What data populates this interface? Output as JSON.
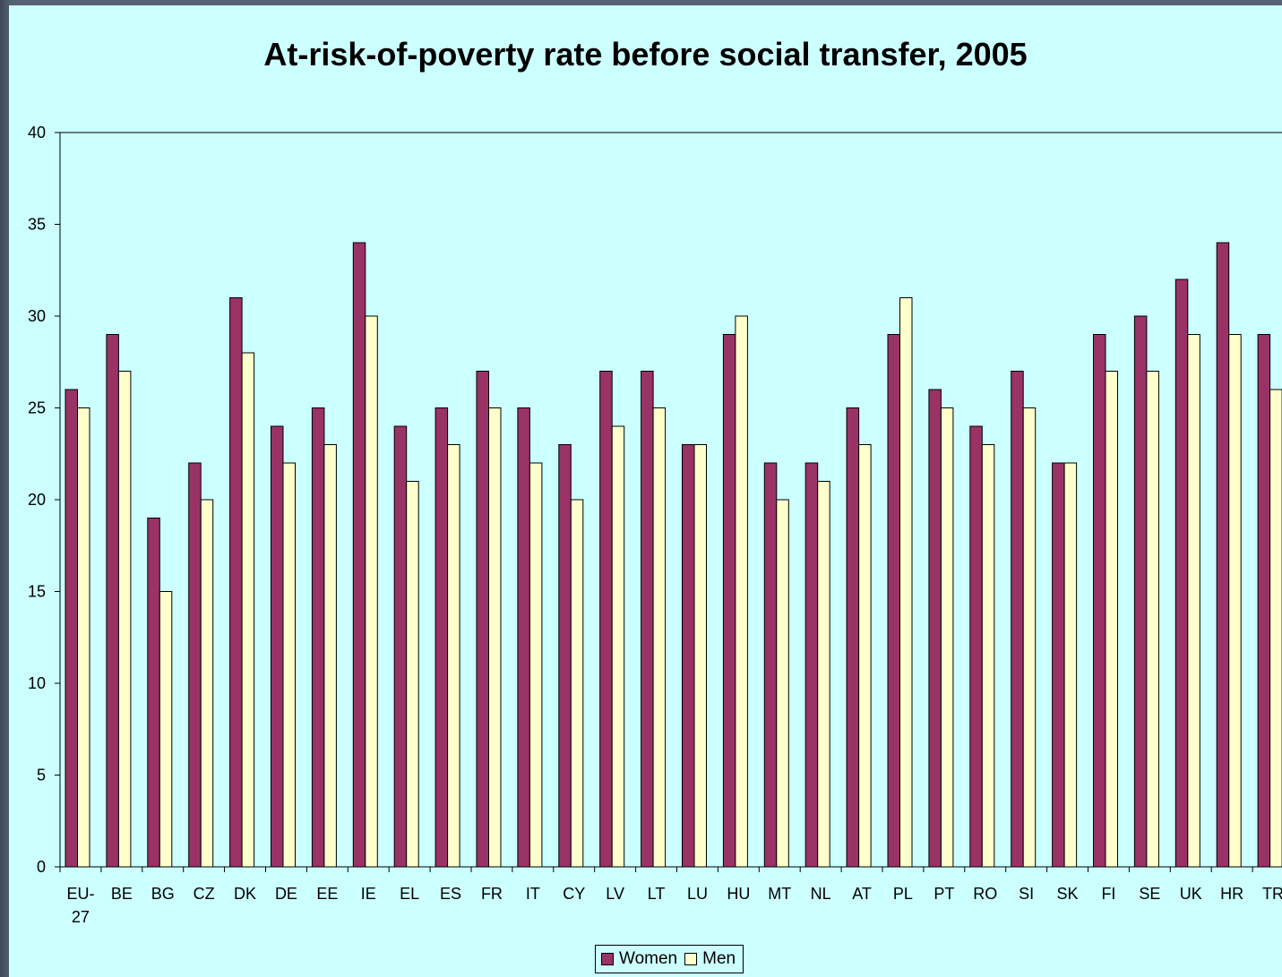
{
  "chart_data": {
    "type": "bar",
    "title": "At-risk-of-poverty rate before social transfer, 2005",
    "categories": [
      "EU-27",
      "BE",
      "BG",
      "CZ",
      "DK",
      "DE",
      "EE",
      "IE",
      "EL",
      "ES",
      "FR",
      "IT",
      "CY",
      "LV",
      "LT",
      "LU",
      "HU",
      "MT",
      "NL",
      "AT",
      "PL",
      "PT",
      "RO",
      "SI",
      "SK",
      "FI",
      "SE",
      "UK",
      "HR",
      "TR"
    ],
    "category_lines": [
      [
        "EU-",
        "27"
      ],
      [
        "BE"
      ],
      [
        "BG"
      ],
      [
        "CZ"
      ],
      [
        "DK"
      ],
      [
        "DE"
      ],
      [
        "EE"
      ],
      [
        "IE"
      ],
      [
        "EL"
      ],
      [
        "ES"
      ],
      [
        "FR"
      ],
      [
        "IT"
      ],
      [
        "CY"
      ],
      [
        "LV"
      ],
      [
        "LT"
      ],
      [
        "LU"
      ],
      [
        "HU"
      ],
      [
        "MT"
      ],
      [
        "NL"
      ],
      [
        "AT"
      ],
      [
        "PL"
      ],
      [
        "PT"
      ],
      [
        "RO"
      ],
      [
        "SI"
      ],
      [
        "SK"
      ],
      [
        "FI"
      ],
      [
        "SE"
      ],
      [
        "UK"
      ],
      [
        "HR"
      ],
      [
        "TR"
      ]
    ],
    "series": [
      {
        "name": "Women",
        "color": "#993366",
        "values": [
          26,
          29,
          19,
          22,
          31,
          24,
          25,
          34,
          24,
          25,
          27,
          25,
          23,
          27,
          27,
          23,
          29,
          22,
          22,
          25,
          29,
          26,
          24,
          27,
          22,
          29,
          30,
          32,
          34,
          29
        ]
      },
      {
        "name": "Men",
        "color": "#ffffcc",
        "values": [
          25,
          27,
          15,
          20,
          28,
          22,
          23,
          30,
          21,
          23,
          25,
          22,
          20,
          24,
          25,
          23,
          30,
          20,
          21,
          23,
          31,
          25,
          23,
          25,
          22,
          27,
          27,
          29,
          29,
          26
        ]
      }
    ],
    "ylim": [
      0,
      40
    ],
    "yticks": [
      0,
      5,
      10,
      15,
      20,
      25,
      30,
      35,
      40
    ],
    "xlabel": "",
    "ylabel": "",
    "grid": "top line only",
    "legend_position": "bottom"
  }
}
